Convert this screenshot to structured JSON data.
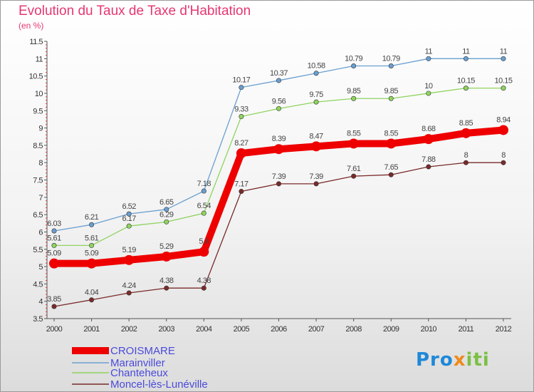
{
  "title": "Evolution du Taux de Taxe d'Habitation",
  "subtitle": "(en %)",
  "logo": {
    "part1": "Pro",
    "part2": "x",
    "part3": "iti"
  },
  "chart_data": {
    "type": "line",
    "title": "Evolution du Taux de Taxe d'Habitation",
    "subtitle": "(en %)",
    "x": [
      "2000",
      "2001",
      "2002",
      "2003",
      "2004",
      "2005",
      "2006",
      "2007",
      "2008",
      "2009",
      "2010",
      "2011",
      "2012"
    ],
    "yticks": [
      "3.5",
      "4",
      "4.5",
      "5",
      "5.5",
      "6",
      "6.5",
      "7",
      "7.5",
      "8",
      "8.5",
      "9",
      "9.5",
      "10",
      "10.5",
      "11",
      "11.5"
    ],
    "ylim": [
      3.5,
      11.5
    ],
    "grid": false,
    "legend_position": "bottom-left",
    "series": [
      {
        "name": "CROISMARE",
        "color": "#ee0000",
        "emphasis": true,
        "values": [
          5.09,
          5.09,
          5.19,
          5.29,
          5.43,
          8.27,
          8.39,
          8.47,
          8.55,
          8.55,
          8.68,
          8.85,
          8.94
        ],
        "labels": [
          "5.09",
          "5.09",
          "5.19",
          "5.29",
          "5.4",
          "8.27",
          "8.39",
          "8.47",
          "8.55",
          "8.55",
          "8.68",
          "8.85",
          "8.94"
        ]
      },
      {
        "name": "Marainviller",
        "color": "#6a9fd0",
        "values": [
          6.03,
          6.21,
          6.52,
          6.65,
          7.18,
          10.17,
          10.37,
          10.58,
          10.79,
          10.79,
          11,
          11,
          11
        ],
        "labels": [
          "6.03",
          "6.21",
          "6.52",
          "6.65",
          "7.18",
          "10.17",
          "10.37",
          "10.58",
          "10.79",
          "10.79",
          "11",
          "11",
          "11"
        ]
      },
      {
        "name": "Chanteheux",
        "color": "#8fd45f",
        "values": [
          5.61,
          5.61,
          6.17,
          6.29,
          6.54,
          9.33,
          9.56,
          9.75,
          9.85,
          9.85,
          10,
          10.15,
          10.15
        ],
        "labels": [
          "5.61",
          "5.61",
          "6.17",
          "6.29",
          "6.54",
          "9.33",
          "9.56",
          "9.75",
          "9.85",
          "9.85",
          "10",
          "10.15",
          "10.15"
        ]
      },
      {
        "name": "Moncel-lès-Lunéville",
        "color": "#7a2a2a",
        "values": [
          3.85,
          4.04,
          4.24,
          4.38,
          4.38,
          7.17,
          7.39,
          7.39,
          7.61,
          7.65,
          7.88,
          8,
          8
        ],
        "labels": [
          "3.85",
          "4.04",
          "4.24",
          "4.38",
          "4.38",
          "7.17",
          "7.39",
          "7.39",
          "7.61",
          "7.65",
          "7.88",
          "8",
          "8"
        ]
      }
    ]
  }
}
